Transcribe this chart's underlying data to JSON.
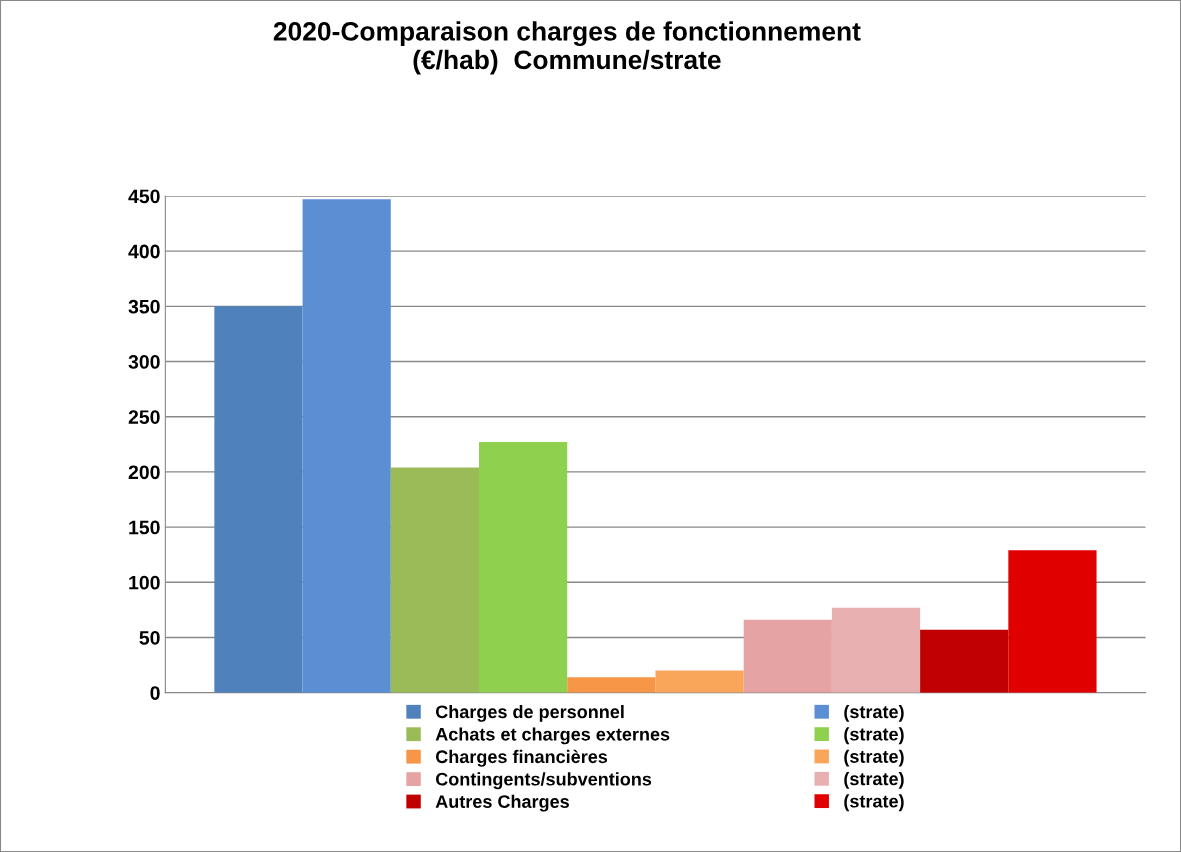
{
  "chart_data": {
    "type": "bar",
    "title": "2020-Comparaison charges de fonctionnement\n(€/hab)  Commune/strate",
    "categories": [
      null
    ],
    "series": [
      {
        "name": "Charges de personnel",
        "color": "#4f81bd",
        "values": [
          350
        ]
      },
      {
        "name": "(strate)",
        "color": "#5b8fd4",
        "values": [
          447
        ]
      },
      {
        "name": "Achats et charges externes",
        "color": "#9bbb59",
        "values": [
          204
        ]
      },
      {
        "name": "(strate)",
        "color": "#8fd14f",
        "values": [
          227
        ]
      },
      {
        "name": "Charges financières",
        "color": "#f79646",
        "values": [
          14
        ]
      },
      {
        "name": "(strate)",
        "color": "#f9a65a",
        "values": [
          20
        ]
      },
      {
        "name": "Contingents/subventions",
        "color": "#e6a3a3",
        "values": [
          66
        ]
      },
      {
        "name": "(strate)",
        "color": "#e8b0b0",
        "values": [
          77
        ]
      },
      {
        "name": "Autres Charges",
        "color": "#c00000",
        "values": [
          57
        ]
      },
      {
        "name": "(strate)",
        "color": "#e00000",
        "values": [
          129
        ]
      }
    ],
    "ylim": [
      0,
      450
    ],
    "yticks": [
      0,
      50,
      100,
      150,
      200,
      250,
      300,
      350,
      400,
      450
    ],
    "grid": "y",
    "legend": "bottom"
  }
}
